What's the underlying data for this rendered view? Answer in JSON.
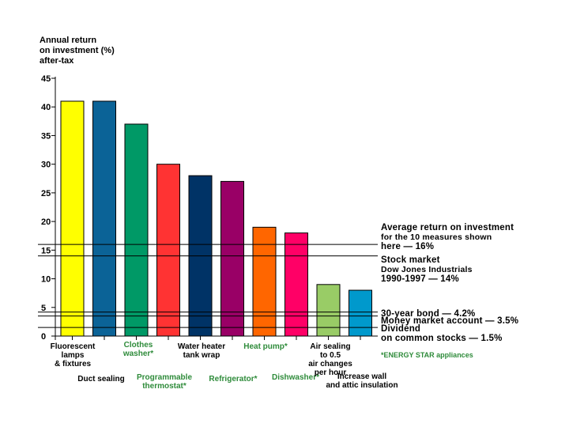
{
  "chart_data": {
    "type": "bar",
    "ylabel": [
      "Annual return",
      "on investment (%)",
      "after-tax"
    ],
    "ylim": [
      0,
      45
    ],
    "yticks": [
      0,
      5,
      10,
      15,
      20,
      25,
      30,
      35,
      40,
      45
    ],
    "categories": [
      {
        "label": "Fluorescent\nlamps\n& fixtures",
        "value": 41,
        "color": "#ffff00",
        "energy_star": false
      },
      {
        "label": "Duct sealing",
        "value": 41,
        "color": "#0b6397",
        "energy_star": false
      },
      {
        "label": "Clothes\nwasher*",
        "value": 37,
        "color": "#009966",
        "energy_star": true
      },
      {
        "label": "Programmable\nthermostat*",
        "value": 30,
        "color": "#ff3333",
        "energy_star": true
      },
      {
        "label": "Water heater\ntank wrap",
        "value": 28,
        "color": "#003366",
        "energy_star": false
      },
      {
        "label": "Refrigerator*",
        "value": 27,
        "color": "#990066",
        "energy_star": true
      },
      {
        "label": "Heat pump*",
        "value": 19,
        "color": "#ff6600",
        "energy_star": true
      },
      {
        "label": "Dishwasher*",
        "value": 18,
        "color": "#ff0066",
        "energy_star": true
      },
      {
        "label": "Air sealing\nto 0.5\nair changes\nper hour",
        "value": 9,
        "color": "#99cc66",
        "energy_star": false
      },
      {
        "label": "Increase wall\nand attic insulation",
        "value": 8,
        "color": "#0099cc",
        "energy_star": false
      }
    ],
    "reference_lines": [
      {
        "value": 16,
        "lines": [
          "Average return on investment",
          "for the 10 measures shown",
          "here — 16%"
        ]
      },
      {
        "value": 14,
        "lines": [
          "Stock market",
          "Dow Jones Industrials",
          "1990-1997 — 14%"
        ]
      },
      {
        "value": 4.2,
        "lines": [
          "30-year bond — 4.2%"
        ]
      },
      {
        "value": 3.5,
        "lines": [
          "Money market account — 3.5%"
        ]
      },
      {
        "value": 1.5,
        "lines": [
          "Dividend",
          "on common stocks —  1.5%"
        ]
      }
    ],
    "footnote": "*ENERGY STAR appliances"
  }
}
